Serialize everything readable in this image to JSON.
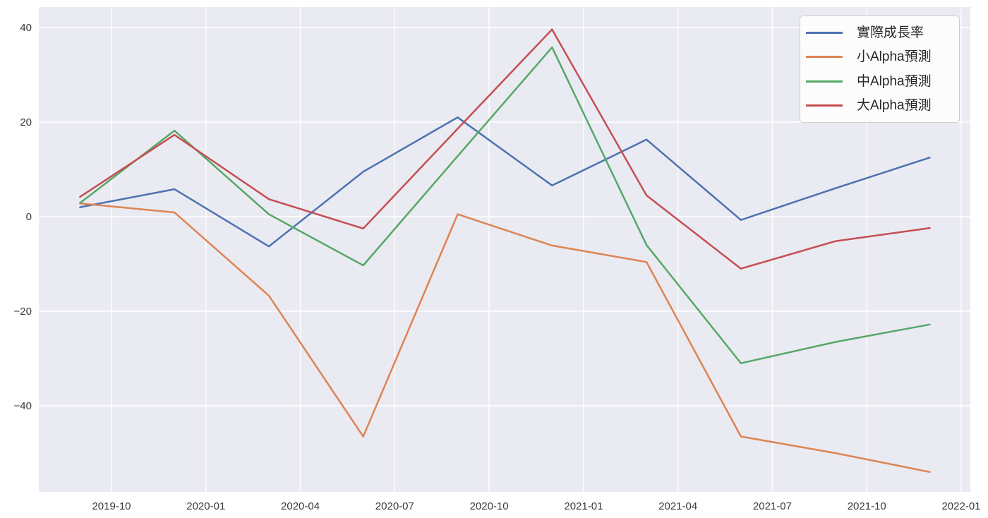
{
  "chart_data": {
    "type": "line",
    "title": "",
    "xlabel": "",
    "ylabel": "",
    "x": [
      "2019-09",
      "2019-12",
      "2020-03",
      "2020-06",
      "2020-09",
      "2020-12",
      "2021-03",
      "2021-06",
      "2021-09",
      "2021-12"
    ],
    "series": [
      {
        "name": "實際成長率",
        "color": "#4C72B0",
        "values": [
          2.0,
          5.8,
          -6.3,
          9.5,
          21.0,
          6.6,
          16.3,
          -0.7,
          6.0,
          12.5
        ]
      },
      {
        "name": "小Alpha預測",
        "color": "#DD8452",
        "values": [
          2.8,
          0.9,
          -16.7,
          -46.5,
          0.5,
          -6.1,
          -9.6,
          -46.5,
          -50.0,
          -54.0
        ]
      },
      {
        "name": "中Alpha預測",
        "color": "#55A868",
        "values": [
          2.9,
          18.2,
          0.5,
          -10.3,
          12.8,
          35.8,
          -6.0,
          -31.0,
          -26.5,
          -22.8
        ]
      },
      {
        "name": "大Alpha預測",
        "color": "#C44E52",
        "values": [
          4.2,
          17.3,
          3.7,
          -2.5,
          18.6,
          39.6,
          4.5,
          -11.0,
          -5.2,
          -2.4
        ]
      }
    ],
    "x_ticks": [
      "2019-10",
      "2020-01",
      "2020-04",
      "2020-07",
      "2020-10",
      "2021-01",
      "2021-04",
      "2021-07",
      "2021-10",
      "2022-01"
    ],
    "y_ticks": {
      "values": [
        40,
        20,
        0,
        -20,
        -40
      ],
      "labels": [
        "40",
        "20",
        "0",
        "−20",
        "−40"
      ]
    },
    "ylim": [
      -58.2,
      44.3
    ],
    "xlim": [
      "2019-07",
      "2022-02"
    ],
    "grid": true,
    "legend_position": "upper right",
    "plot_bg": "#EAEAF2",
    "grid_color": "#FFFFFF",
    "figure_bg": "#FFFFFF"
  }
}
